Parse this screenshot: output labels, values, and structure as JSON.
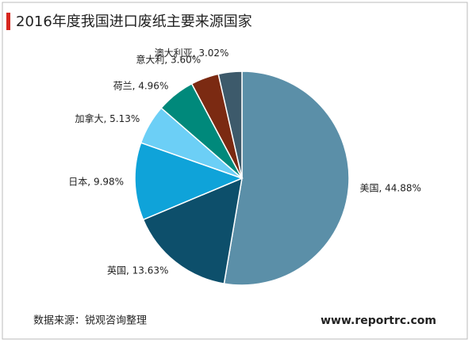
{
  "chart_data": {
    "type": "pie",
    "title": "2016年度我国进口废纸主要来源国家",
    "categories": [
      "美国",
      "英国",
      "日本",
      "加拿大",
      "荷兰",
      "意大利",
      "澳大利亚"
    ],
    "values": [
      44.88,
      13.63,
      9.98,
      5.13,
      4.96,
      3.6,
      3.02
    ],
    "value_labels": [
      "44.88%",
      "13.63%",
      "9.98%",
      "5.13%",
      "4.96%",
      "3.60%",
      "3.02%"
    ],
    "colors": [
      "#5b8fa8",
      "#0d4f6b",
      "#0fa3d9",
      "#6ccff6",
      "#00897b",
      "#7b2a12",
      "#3d5a6b"
    ],
    "source": "数据来源：锐观咨询整理",
    "website": "www.reportrc.com"
  }
}
